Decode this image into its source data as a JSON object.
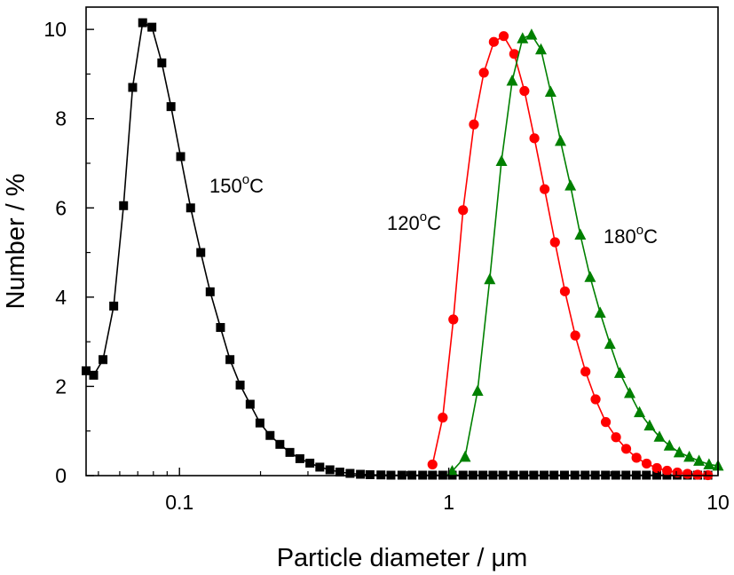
{
  "chart_data": {
    "type": "line",
    "xlabel": "Particle diameter / μm",
    "ylabel": "Number / %",
    "xscale": "log",
    "xlim": [
      0.045,
      10
    ],
    "ylim": [
      0,
      10.5
    ],
    "xticks": [
      0.1,
      1,
      10
    ],
    "xtick_labels": [
      "0.1",
      "1",
      "10"
    ],
    "yticks": [
      0,
      2,
      4,
      6,
      8,
      10
    ],
    "ytick_labels": [
      "0",
      "2",
      "4",
      "6",
      "8",
      "10"
    ],
    "grid": false,
    "legend": "none",
    "annotations": [
      {
        "text": "150",
        "sup": "o",
        "unit": "C",
        "series": "150"
      },
      {
        "text": "120",
        "sup": "o",
        "unit": "C",
        "series": "120"
      },
      {
        "text": "180",
        "sup": "o",
        "unit": "C",
        "series": "180"
      }
    ],
    "series": [
      {
        "key": "150",
        "color": "#000000",
        "marker": "square",
        "x": [
          0.045,
          0.048,
          0.052,
          0.057,
          0.062,
          0.067,
          0.073,
          0.079,
          0.086,
          0.093,
          0.101,
          0.11,
          0.12,
          0.13,
          0.142,
          0.154,
          0.168,
          0.183,
          0.199,
          0.217,
          0.236,
          0.257,
          0.28,
          0.305,
          0.332,
          0.362,
          0.394,
          0.43,
          0.47,
          0.51,
          0.56,
          0.61,
          0.67,
          0.73,
          0.8,
          0.87,
          0.95,
          1.03,
          1.13,
          1.23,
          1.34,
          1.46,
          1.59,
          1.74,
          1.9,
          2.07,
          2.26,
          2.46,
          2.69,
          2.94,
          3.21,
          3.5,
          3.82,
          4.17,
          4.55,
          4.97,
          5.42,
          5.92,
          6.46,
          7.05,
          7.7,
          8.4,
          9.17
        ],
        "y": [
          2.35,
          2.25,
          2.6,
          3.8,
          6.05,
          8.7,
          10.15,
          10.05,
          9.25,
          8.27,
          7.15,
          6.0,
          5.0,
          4.12,
          3.32,
          2.6,
          2.03,
          1.6,
          1.18,
          0.9,
          0.7,
          0.52,
          0.38,
          0.28,
          0.19,
          0.13,
          0.08,
          0.05,
          0.03,
          0.02,
          0.015,
          0.01,
          0.01,
          0.01,
          0.01,
          0.01,
          0.01,
          0.01,
          0.01,
          0.01,
          0.01,
          0.01,
          0.01,
          0.01,
          0.01,
          0.01,
          0.01,
          0.01,
          0.01,
          0.01,
          0.01,
          0.01,
          0.01,
          0.01,
          0.01,
          0.01,
          0.01,
          0.01,
          0.01,
          0.01,
          0.01,
          0.01,
          0.01
        ]
      },
      {
        "key": "120",
        "color": "#ff0000",
        "marker": "circle",
        "x": [
          0.87,
          0.95,
          1.04,
          1.13,
          1.24,
          1.35,
          1.47,
          1.6,
          1.75,
          1.91,
          2.08,
          2.27,
          2.48,
          2.7,
          2.95,
          3.22,
          3.51,
          3.83,
          4.18,
          4.56,
          4.98,
          5.43,
          5.93,
          6.47,
          7.06,
          7.7,
          8.4,
          9.17
        ],
        "y": [
          0.25,
          1.3,
          3.5,
          5.95,
          7.87,
          9.03,
          9.72,
          9.85,
          9.45,
          8.62,
          7.56,
          6.42,
          5.23,
          4.13,
          3.14,
          2.33,
          1.71,
          1.2,
          0.86,
          0.6,
          0.4,
          0.27,
          0.17,
          0.11,
          0.07,
          0.04,
          0.02,
          0.01
        ]
      },
      {
        "key": "180",
        "color": "#008000",
        "marker": "triangle",
        "x": [
          1.03,
          1.15,
          1.28,
          1.42,
          1.57,
          1.72,
          1.88,
          2.03,
          2.2,
          2.39,
          2.6,
          2.83,
          3.08,
          3.35,
          3.65,
          3.97,
          4.32,
          4.7,
          5.11,
          5.57,
          6.06,
          6.6,
          7.18,
          7.82,
          8.5,
          9.26,
          10.0
        ],
        "y": [
          0.1,
          0.42,
          1.9,
          4.4,
          7.05,
          8.85,
          9.8,
          9.88,
          9.55,
          8.6,
          7.5,
          6.5,
          5.4,
          4.45,
          3.65,
          2.95,
          2.3,
          1.85,
          1.42,
          1.12,
          0.87,
          0.67,
          0.52,
          0.42,
          0.33,
          0.25,
          0.22
        ]
      }
    ]
  }
}
